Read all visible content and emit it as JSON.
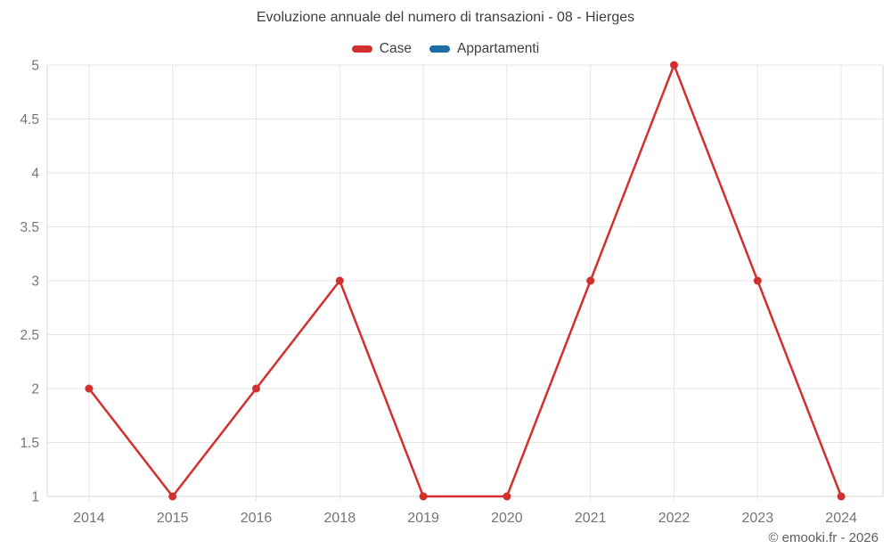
{
  "header": {
    "title": "Evoluzione annuale del numero di transazioni - 08 - Hierges"
  },
  "footer": {
    "credit": "© emooki.fr - 2026"
  },
  "colors": {
    "case_red": "#d32f2f",
    "appartamenti_blue": "#1c6ea4",
    "grid": "#e7e7e7",
    "axis": "#d4d4d4",
    "title_text": "#3f3f3f",
    "axis_text": "#757575",
    "footer_text": "#5f5f5f"
  },
  "chart_data": {
    "type": "line",
    "title": "Evoluzione annuale del numero di transazioni - 08 - Hierges",
    "categories": [
      "2014",
      "2015",
      "2016",
      "2018",
      "2019",
      "2020",
      "2021",
      "2022",
      "2023",
      "2024"
    ],
    "series": [
      {
        "name": "Case",
        "color": "#d32f2f",
        "values": [
          2,
          1,
          2,
          3,
          1,
          1,
          3,
          5,
          3,
          1
        ]
      },
      {
        "name": "Appartamenti",
        "color": "#1c6ea4",
        "values": []
      }
    ],
    "xlabel": "",
    "ylabel": "",
    "ylim": [
      1,
      5
    ],
    "y_ticks": [
      1,
      1.5,
      2,
      2.5,
      3,
      3.5,
      4,
      4.5,
      5
    ],
    "grid": true,
    "legend_position": "top",
    "marker_radius": 4.5,
    "line_width": 2.5
  }
}
